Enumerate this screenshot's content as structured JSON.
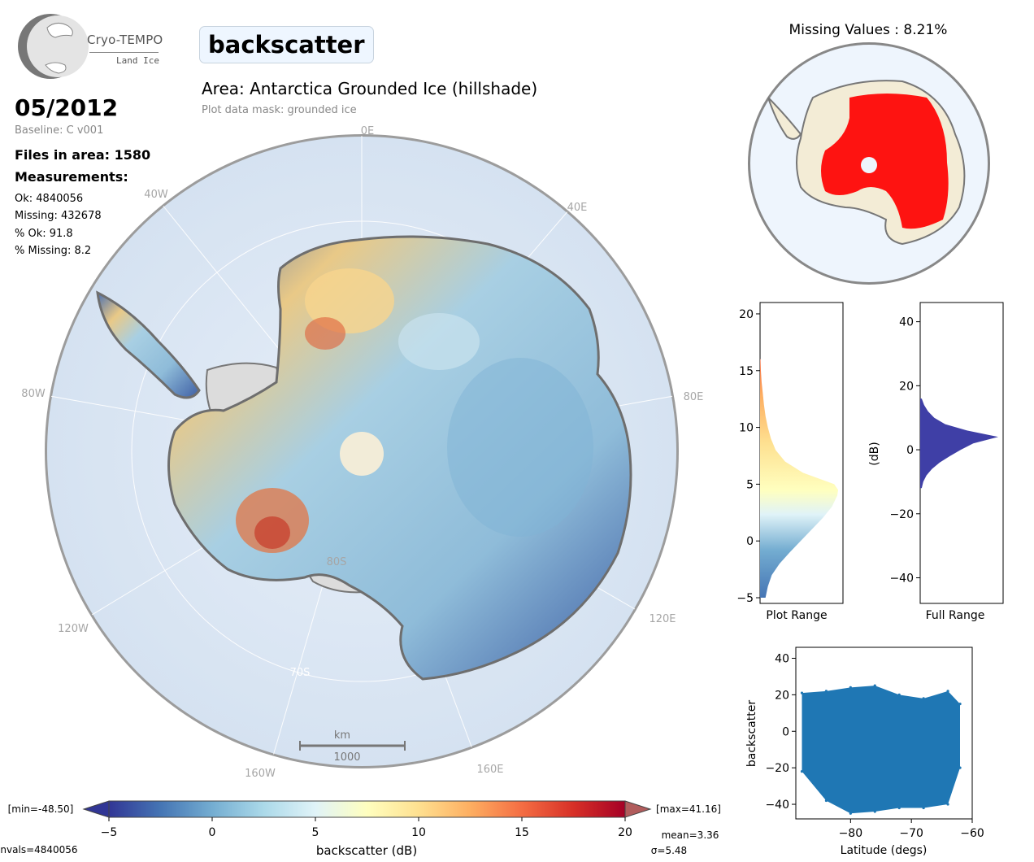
{
  "logo": {
    "title": "Cryo-TEMPO",
    "subtitle": "Land Ice"
  },
  "variable": "backscatter",
  "area_title": "Area: Antarctica Grounded Ice (hillshade)",
  "mask_note": "Plot data mask: grounded ice",
  "date": "05/2012",
  "baseline": "Baseline: C v001",
  "files": "Files in area: 1580",
  "measurements_label": "Measurements:",
  "stats": [
    "Ok: 4840056",
    "Missing: 432678",
    "% Ok: 91.8",
    "% Missing: 8.2"
  ],
  "map": {
    "longitude_labels": [
      "0E",
      "40E",
      "80E",
      "120E",
      "160E",
      "160W",
      "120W",
      "80W",
      "40W"
    ],
    "latitude_labels": [
      "80S",
      "70S"
    ],
    "scale_unit": "km",
    "scale_value": "1000"
  },
  "missing_title": "Missing Values : 8.21%",
  "colorbar": {
    "min_label": "[min=-48.50]",
    "max_label": "[max=41.16]",
    "ticks": [
      "−5",
      "0",
      "5",
      "10",
      "15",
      "20"
    ],
    "label": "backscatter (dB)",
    "mean": "mean=3.36",
    "sigma": "σ=5.48",
    "nvals": "nvals=4840056"
  },
  "colors": {
    "missing": "#ff0000",
    "hist_full": "#3f3fa6",
    "scatter": "#1f77b4"
  },
  "chart_data": [
    {
      "type": "heatmap",
      "title": "Area: Antarctica Grounded Ice (hillshade)",
      "colorbar_label": "backscatter (dB)",
      "vmin": -5,
      "vmax": 20,
      "colormap": "RdYlBu_r"
    },
    {
      "type": "bar",
      "orientation": "horizontal",
      "xlabel": "Plot Range",
      "ylim": [
        -5.5,
        21
      ],
      "yticks": [
        "−5",
        "0",
        "5",
        "10",
        "15",
        "20"
      ],
      "x": [
        -5,
        -4,
        -3,
        -2,
        -1,
        0,
        1,
        2,
        3,
        4,
        4.5,
        5,
        6,
        7,
        8,
        9,
        10,
        11,
        12,
        13,
        14,
        15,
        16
      ],
      "values": [
        0.07,
        0.1,
        0.15,
        0.25,
        0.38,
        0.52,
        0.66,
        0.8,
        0.92,
        0.99,
        1.0,
        0.95,
        0.55,
        0.32,
        0.2,
        0.14,
        0.1,
        0.07,
        0.05,
        0.035,
        0.02,
        0.01,
        0.005
      ]
    },
    {
      "type": "bar",
      "orientation": "horizontal",
      "xlabel": "Full Range",
      "ylabel": "(dB)",
      "ylim": [
        -48,
        46
      ],
      "yticks": [
        "−40",
        "−20",
        "0",
        "20",
        "40"
      ],
      "x": [
        -12,
        -10,
        -8,
        -6,
        -4,
        -2,
        0,
        2,
        4,
        6,
        8,
        10,
        12,
        14,
        16
      ],
      "values": [
        0.02,
        0.04,
        0.08,
        0.15,
        0.25,
        0.38,
        0.52,
        0.68,
        1.0,
        0.6,
        0.32,
        0.18,
        0.1,
        0.05,
        0.02
      ]
    },
    {
      "type": "scatter",
      "xlabel": "Latitude (degs)",
      "ylabel": "backscatter",
      "xlim": [
        -89,
        -60
      ],
      "ylim": [
        -48,
        46
      ],
      "xticks": [
        "−80",
        "−70",
        "−60"
      ],
      "yticks": [
        "−40",
        "−20",
        "0",
        "20",
        "40"
      ],
      "envelope": [
        {
          "x": -88,
          "low": -22,
          "high": 21
        },
        {
          "x": -84,
          "low": -38,
          "high": 22
        },
        {
          "x": -80,
          "low": -45,
          "high": 24
        },
        {
          "x": -76,
          "low": -44,
          "high": 25
        },
        {
          "x": -72,
          "low": -42,
          "high": 20
        },
        {
          "x": -68,
          "low": -42,
          "high": 18
        },
        {
          "x": -64,
          "low": -40,
          "high": 22
        },
        {
          "x": -62,
          "low": -20,
          "high": 15
        }
      ]
    }
  ]
}
